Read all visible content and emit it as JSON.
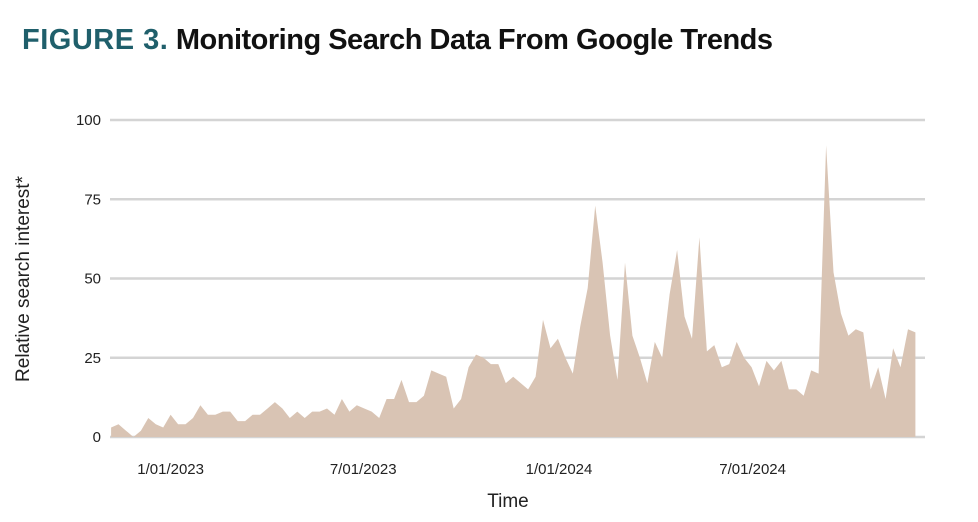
{
  "title": {
    "figure_label": "FIGURE 3.",
    "text": "Monitoring Search Data From Google Trends"
  },
  "colors": {
    "area": "#d9c4b4",
    "grid": "#d4d4d4",
    "figure_label": "#1f5f6b"
  },
  "chart_data": {
    "type": "area",
    "xlabel": "Time",
    "ylabel": "Relative search interest*",
    "ylim": [
      0,
      100
    ],
    "yticks": [
      "0",
      "25",
      "50",
      "75",
      "100"
    ],
    "xlim": [
      "2022-11-05",
      "2024-12-10"
    ],
    "xticks": [
      {
        "date": "2023-01-01",
        "label": "1/01/2023"
      },
      {
        "date": "2023-07-01",
        "label": "7/01/2023"
      },
      {
        "date": "2024-01-01",
        "label": "1/01/2024"
      },
      {
        "date": "2024-07-01",
        "label": "7/01/2024"
      }
    ],
    "grid": true,
    "legend": "none",
    "series": [
      {
        "x": [
          "2022-11-06",
          "2022-11-13",
          "2022-11-20",
          "2022-11-27",
          "2022-12-04",
          "2022-12-11",
          "2022-12-18",
          "2022-12-25",
          "2023-01-01",
          "2023-01-08",
          "2023-01-15",
          "2023-01-22",
          "2023-01-29",
          "2023-02-05",
          "2023-02-12",
          "2023-02-19",
          "2023-02-26",
          "2023-03-05",
          "2023-03-12",
          "2023-03-19",
          "2023-03-26",
          "2023-04-02",
          "2023-04-09",
          "2023-04-16",
          "2023-04-23",
          "2023-04-30",
          "2023-05-07",
          "2023-05-14",
          "2023-05-21",
          "2023-05-28",
          "2023-06-04",
          "2023-06-11",
          "2023-06-18",
          "2023-06-25",
          "2023-07-02",
          "2023-07-09",
          "2023-07-16",
          "2023-07-23",
          "2023-07-30",
          "2023-08-06",
          "2023-08-13",
          "2023-08-20",
          "2023-08-27",
          "2023-09-03",
          "2023-09-10",
          "2023-09-17",
          "2023-09-24",
          "2023-10-01",
          "2023-10-08",
          "2023-10-15",
          "2023-10-22",
          "2023-10-29",
          "2023-11-05",
          "2023-11-12",
          "2023-11-19",
          "2023-11-26",
          "2023-12-03",
          "2023-12-10",
          "2023-12-17",
          "2023-12-24",
          "2023-12-31",
          "2024-01-07",
          "2024-01-14",
          "2024-01-21",
          "2024-01-28",
          "2024-02-04",
          "2024-02-11",
          "2024-02-18",
          "2024-02-25",
          "2024-03-03",
          "2024-03-10",
          "2024-03-17",
          "2024-03-24",
          "2024-03-31",
          "2024-04-07",
          "2024-04-14",
          "2024-04-21",
          "2024-04-28",
          "2024-05-05",
          "2024-05-12",
          "2024-05-19",
          "2024-05-26",
          "2024-06-02",
          "2024-06-09",
          "2024-06-16",
          "2024-06-23",
          "2024-06-30",
          "2024-07-07",
          "2024-07-14",
          "2024-07-21",
          "2024-07-28",
          "2024-08-04",
          "2024-08-11",
          "2024-08-18",
          "2024-08-25",
          "2024-09-01",
          "2024-09-08",
          "2024-09-15",
          "2024-09-22",
          "2024-09-29",
          "2024-10-06",
          "2024-10-13",
          "2024-10-20",
          "2024-10-27",
          "2024-11-03",
          "2024-11-10",
          "2024-11-17",
          "2024-11-24",
          "2024-12-01"
        ],
        "y": [
          3,
          4,
          2,
          0,
          2,
          6,
          4,
          3,
          7,
          4,
          4,
          6,
          10,
          7,
          7,
          8,
          8,
          5,
          5,
          7,
          7,
          9,
          11,
          9,
          6,
          8,
          6,
          8,
          8,
          9,
          7,
          12,
          8,
          10,
          9,
          8,
          6,
          12,
          12,
          18,
          11,
          11,
          13,
          21,
          20,
          19,
          9,
          12,
          22,
          26,
          25,
          23,
          23,
          17,
          19,
          17,
          15,
          19,
          37,
          28,
          31,
          25,
          20,
          35,
          47,
          73,
          55,
          32,
          18,
          55,
          32,
          25,
          17,
          30,
          25,
          45,
          59,
          38,
          31,
          63,
          27,
          29,
          22,
          23,
          30,
          25,
          22,
          16,
          24,
          21,
          24,
          15,
          15,
          13,
          21,
          20,
          92,
          52,
          39,
          32,
          34,
          33,
          15,
          22,
          12,
          28,
          22,
          34,
          33
        ]
      }
    ]
  }
}
